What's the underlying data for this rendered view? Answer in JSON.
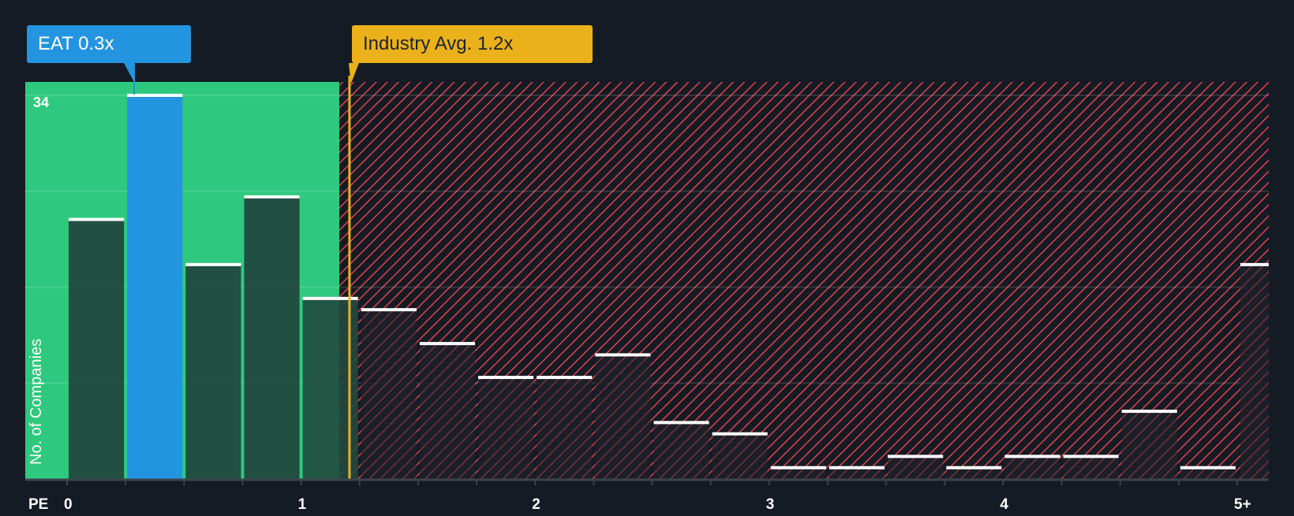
{
  "callouts": {
    "company": {
      "label": "EAT 0.3x",
      "value": 0.3,
      "color": "#2394df"
    },
    "industry": {
      "label": "Industry Avg. 1.2x",
      "value": 1.2,
      "color": "#ebb11a"
    }
  },
  "axes": {
    "y_label": "No. of Companies",
    "y_max_label": "34",
    "x_prefix": "PE",
    "x_ticks": [
      "0",
      "1",
      "2",
      "3",
      "4",
      "5+"
    ]
  },
  "colors": {
    "background": "#151b24",
    "undervalued_zone": "#2ec97e",
    "overvalued_hatch": "#e0424a",
    "bar_dark": "#1e4a3e",
    "highlight_bar": "#2394df",
    "bar_cap": "#ffffff"
  },
  "chart_data": {
    "type": "bar",
    "title": "",
    "xlabel": "PE",
    "ylabel": "No. of Companies",
    "categories": [
      "0-0.25",
      "0.25-0.5",
      "0.5-0.75",
      "0.75-1",
      "1-1.25",
      "1.25-1.5",
      "1.5-1.75",
      "1.75-2",
      "2-2.25",
      "2.25-2.5",
      "2.5-2.75",
      "2.75-3",
      "3-3.25",
      "3.25-3.5",
      "3.5-3.75",
      "3.75-4",
      "4-4.25",
      "4.25-4.5",
      "4.5-4.75",
      "4.75-5",
      "5+"
    ],
    "values": [
      23,
      34,
      19,
      25,
      16,
      15,
      12,
      9,
      9,
      11,
      5,
      4,
      1,
      1,
      2,
      1,
      2,
      2,
      6,
      1,
      19
    ],
    "highlight_index": 1,
    "ylim": [
      0,
      34
    ],
    "x_tick_labels": [
      "0",
      "1",
      "2",
      "3",
      "4",
      "5+"
    ],
    "annotations": [
      "EAT 0.3x",
      "Industry Avg. 1.2x"
    ],
    "grid": true,
    "legend": "none"
  }
}
